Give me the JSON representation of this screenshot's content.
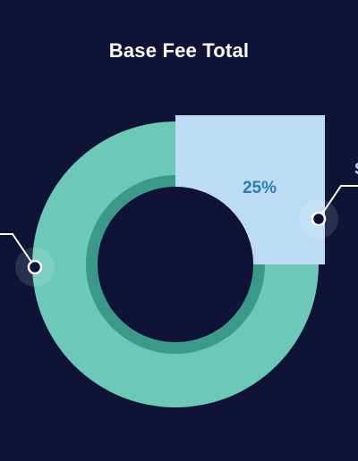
{
  "chart_data": {
    "type": "pie",
    "title": "Base Fee Total",
    "categories": [
      "S",
      ""
    ],
    "values": [
      25,
      75
    ],
    "data_labels": [
      "25%",
      ""
    ],
    "colors": [
      "#bcdcf3",
      "#6cc9b8"
    ],
    "inner_ring_color": "#3a9a8a",
    "label_color": "#2b7ab5",
    "background": "#0f1437",
    "callout_color": "#ffffff"
  }
}
